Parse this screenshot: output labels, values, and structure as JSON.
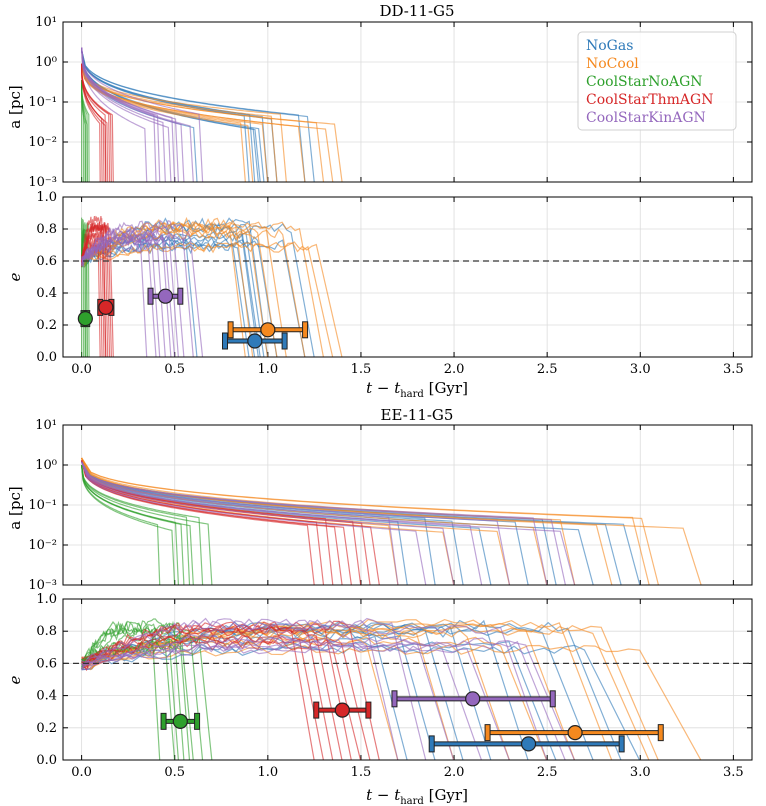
{
  "colors": {
    "NoGas": "#2f7ab9",
    "NoCool": "#f5891f",
    "CoolStarNoAGN": "#2ea02c",
    "CoolStarThmAGN": "#d62728",
    "CoolStarKinAGN": "#9467bd"
  },
  "legend": [
    "NoGas",
    "NoCool",
    "CoolStarNoAGN",
    "CoolStarThmAGN",
    "CoolStarKinAGN"
  ],
  "xlabel": "t − t_hard [Gyr]",
  "xlabel_main": "t − t",
  "xlabel_sub": "hard",
  "xlabel_unit": " [Gyr]",
  "chart_data": [
    {
      "title": "DD-11-G5",
      "type": "line",
      "xlim": [
        -0.1,
        3.6
      ],
      "xticks": [
        "0.0",
        "0.5",
        "1.0",
        "1.5",
        "2.0",
        "2.5",
        "3.0",
        "3.5"
      ],
      "a_panel": {
        "ylabel": "a [pc]",
        "yscale": "log",
        "ylim": [
          0.001,
          10
        ],
        "yticks": [
          "10⁻³",
          "10⁻²",
          "10⁻¹",
          "10⁰",
          "10¹"
        ],
        "start_a": {
          "NoGas": 2.0,
          "NoCool": 0.9,
          "CoolStarNoAGN": 0.35,
          "CoolStarThmAGN": 0.9,
          "CoolStarKinAGN": 2.3
        },
        "end_times": {
          "NoGas": [
            0.62,
            0.9,
            0.93,
            0.95,
            0.96,
            0.98,
            1.0,
            1.05,
            1.2,
            1.25
          ],
          "NoCool": [
            0.88,
            0.92,
            1.0,
            1.05,
            1.1,
            1.2,
            1.3,
            1.35,
            1.4
          ],
          "CoolStarNoAGN": [
            0.0,
            0.01,
            0.02,
            0.02,
            0.03,
            0.03,
            0.04
          ],
          "CoolStarThmAGN": [
            0.1,
            0.11,
            0.12,
            0.13,
            0.13,
            0.14,
            0.15,
            0.16,
            0.17
          ],
          "CoolStarKinAGN": [
            0.35,
            0.4,
            0.42,
            0.45,
            0.48,
            0.5,
            0.52,
            0.55,
            0.6,
            0.65
          ]
        }
      },
      "e_panel": {
        "ylabel": "e",
        "ylim": [
          0.0,
          1.0
        ],
        "yticks": [
          "0.0",
          "0.2",
          "0.4",
          "0.6",
          "0.8",
          "1.0"
        ],
        "hline": 0.6,
        "summary": [
          {
            "model": "CoolStarNoAGN",
            "t": 0.02,
            "e": 0.24,
            "xerr_lo": 0.01,
            "xerr_hi": 0.01
          },
          {
            "model": "CoolStarThmAGN",
            "t": 0.13,
            "e": 0.31,
            "xerr_lo": 0.03,
            "xerr_hi": 0.03
          },
          {
            "model": "CoolStarKinAGN",
            "t": 0.45,
            "e": 0.38,
            "xerr_lo": 0.08,
            "xerr_hi": 0.08
          },
          {
            "model": "NoCool",
            "t": 1.0,
            "e": 0.17,
            "xerr_lo": 0.2,
            "xerr_hi": 0.2
          },
          {
            "model": "NoGas",
            "t": 0.93,
            "e": 0.1,
            "xerr_lo": 0.16,
            "xerr_hi": 0.16
          }
        ]
      }
    },
    {
      "title": "EE-11-G5",
      "type": "line",
      "xlim": [
        -0.1,
        3.6
      ],
      "xticks": [
        "0.0",
        "0.5",
        "1.0",
        "1.5",
        "2.0",
        "2.5",
        "3.0",
        "3.5"
      ],
      "a_panel": {
        "ylabel": "a [pc]",
        "yscale": "log",
        "ylim": [
          0.001,
          10
        ],
        "yticks": [
          "10⁻³",
          "10⁻²",
          "10⁻¹",
          "10⁰",
          "10¹"
        ],
        "start_a": {
          "NoGas": 1.3,
          "NoCool": 1.5,
          "CoolStarNoAGN": 1.0,
          "CoolStarThmAGN": 1.3,
          "CoolStarKinAGN": 1.2
        },
        "end_times": {
          "NoGas": [
            1.75,
            1.9,
            2.05,
            2.2,
            2.4,
            2.55,
            2.75,
            2.9,
            3.0
          ],
          "NoCool": [
            1.7,
            2.0,
            2.3,
            2.5,
            2.65,
            2.85,
            3.05,
            3.1,
            3.33
          ],
          "CoolStarNoAGN": [
            0.42,
            0.5,
            0.52,
            0.55,
            0.58,
            0.6,
            0.65,
            0.7
          ],
          "CoolStarThmAGN": [
            1.25,
            1.3,
            1.35,
            1.4,
            1.45,
            1.5,
            1.55,
            1.6
          ],
          "CoolStarKinAGN": [
            1.7,
            1.85,
            2.0,
            2.15,
            2.3,
            2.5,
            2.6,
            2.65
          ]
        }
      },
      "e_panel": {
        "ylabel": "e",
        "ylim": [
          0.0,
          1.0
        ],
        "yticks": [
          "0.0",
          "0.2",
          "0.4",
          "0.6",
          "0.8",
          "1.0"
        ],
        "hline": 0.6,
        "summary": [
          {
            "model": "CoolStarNoAGN",
            "t": 0.53,
            "e": 0.24,
            "xerr_lo": 0.09,
            "xerr_hi": 0.09
          },
          {
            "model": "CoolStarThmAGN",
            "t": 1.4,
            "e": 0.31,
            "xerr_lo": 0.14,
            "xerr_hi": 0.14
          },
          {
            "model": "CoolStarKinAGN",
            "t": 2.1,
            "e": 0.38,
            "xerr_lo": 0.42,
            "xerr_hi": 0.43
          },
          {
            "model": "NoCool",
            "t": 2.65,
            "e": 0.17,
            "xerr_lo": 0.47,
            "xerr_hi": 0.46
          },
          {
            "model": "NoGas",
            "t": 2.4,
            "e": 0.1,
            "xerr_lo": 0.52,
            "xerr_hi": 0.5
          }
        ]
      }
    }
  ]
}
